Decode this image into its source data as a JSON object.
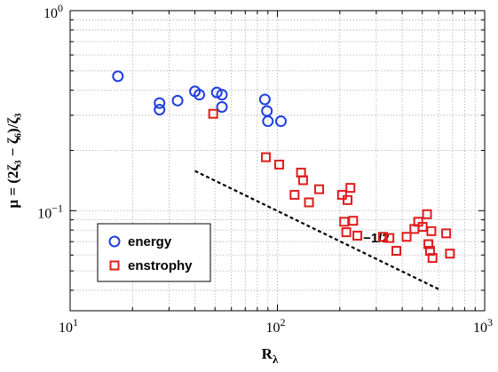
{
  "chart_data": {
    "type": "scatter",
    "xscale": "log",
    "yscale": "log",
    "xlim": [
      10,
      1000
    ],
    "ylim": [
      0.0316,
      1
    ],
    "grid": true,
    "legend_position": "bottom-left",
    "xlabel": "R_λ",
    "ylabel": "μ = (2ζ₃ − ζ₆)/ζ₃",
    "x_ticks": [
      {
        "value": 10,
        "base": "10",
        "exp": "1"
      },
      {
        "value": 100,
        "base": "10",
        "exp": "2"
      },
      {
        "value": 1000,
        "base": "10",
        "exp": "3"
      }
    ],
    "y_ticks": [
      {
        "value": 0.1,
        "base": "10",
        "exp": "−1"
      },
      {
        "value": 1,
        "base": "10",
        "exp": "0"
      }
    ],
    "series": [
      {
        "name": "energy",
        "marker": "circle",
        "color": "#1f3fe0",
        "points": [
          [
            17,
            0.47
          ],
          [
            27,
            0.345
          ],
          [
            27,
            0.32
          ],
          [
            33,
            0.355
          ],
          [
            40,
            0.395
          ],
          [
            42,
            0.38
          ],
          [
            51,
            0.39
          ],
          [
            54,
            0.38
          ],
          [
            54,
            0.33
          ],
          [
            87,
            0.36
          ],
          [
            89,
            0.315
          ],
          [
            90,
            0.28
          ],
          [
            104,
            0.28
          ]
        ]
      },
      {
        "name": "enstrophy",
        "marker": "square",
        "color": "#e01c1c",
        "points": [
          [
            49,
            0.305
          ],
          [
            88,
            0.185
          ],
          [
            102,
            0.17
          ],
          [
            121,
            0.12
          ],
          [
            130,
            0.155
          ],
          [
            133,
            0.142
          ],
          [
            142,
            0.11
          ],
          [
            159,
            0.128
          ],
          [
            205,
            0.12
          ],
          [
            210,
            0.088
          ],
          [
            215,
            0.078
          ],
          [
            218,
            0.113
          ],
          [
            225,
            0.13
          ],
          [
            232,
            0.089
          ],
          [
            243,
            0.075
          ],
          [
            323,
            0.074
          ],
          [
            347,
            0.073
          ],
          [
            375,
            0.063
          ],
          [
            420,
            0.074
          ],
          [
            458,
            0.081
          ],
          [
            478,
            0.088
          ],
          [
            502,
            0.083
          ],
          [
            527,
            0.096
          ],
          [
            535,
            0.068
          ],
          [
            545,
            0.063
          ],
          [
            553,
            0.079
          ],
          [
            560,
            0.058
          ],
          [
            652,
            0.077
          ],
          [
            680,
            0.061
          ]
        ]
      }
    ],
    "reference_line": {
      "slope": -0.5,
      "label": "−1/2",
      "points": [
        [
          40,
          0.158
        ],
        [
          600,
          0.0405
        ]
      ]
    }
  }
}
